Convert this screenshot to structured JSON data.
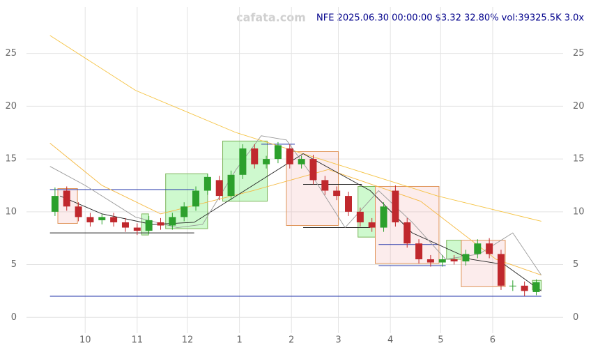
{
  "chart_data": {
    "type": "candlestick",
    "title": "NFE 2025.06.30 00:00:00 $3.32 32.80% vol:39325.5K 3.0x",
    "watermark": "cafata.com",
    "xlim": [
      -5,
      315
    ],
    "xticks": [
      {
        "value": 30,
        "label": "10"
      },
      {
        "value": 61,
        "label": "11"
      },
      {
        "value": 91,
        "label": "12"
      },
      {
        "value": 122,
        "label": "1"
      },
      {
        "value": 153,
        "label": "2"
      },
      {
        "value": 181,
        "label": "3"
      },
      {
        "value": 212,
        "label": "4"
      },
      {
        "value": 242,
        "label": "5"
      },
      {
        "value": 273,
        "label": "6"
      }
    ],
    "ylim": [
      -1.5,
      29.4
    ],
    "yticks": [
      0,
      5,
      10,
      15,
      20,
      25
    ],
    "grid": true,
    "up_color": "#2ca02c",
    "down_color": "#c0282d",
    "x": [
      12,
      19,
      26,
      33,
      40,
      47,
      54,
      61,
      68,
      75,
      82,
      89,
      96,
      103,
      110,
      117,
      124,
      131,
      138,
      145,
      152,
      159,
      166,
      173,
      180,
      187,
      194,
      201,
      208,
      215,
      222,
      229,
      236,
      243,
      250,
      257,
      264,
      271,
      278,
      285,
      292,
      299
    ],
    "open": [
      10,
      12,
      10.5,
      9.5,
      9.2,
      9.5,
      9,
      8.5,
      8.2,
      9,
      8.7,
      9.5,
      10.5,
      12,
      13,
      11.5,
      13.5,
      16,
      14.5,
      15,
      16,
      14.5,
      15,
      13,
      12,
      11.5,
      10,
      9,
      8.5,
      12,
      9,
      7,
      5.5,
      5.2,
      5.5,
      5.3,
      6,
      7,
      6,
      3,
      3,
      2.4
    ],
    "high": [
      12.3,
      12.4,
      10.9,
      9.9,
      9.8,
      9.9,
      9.4,
      8.9,
      9.6,
      9.4,
      9.9,
      10.9,
      12.4,
      13.6,
      13.4,
      13.9,
      16.4,
      16.4,
      15.3,
      16.6,
      16.4,
      15.3,
      15.4,
      13.4,
      12.4,
      11.9,
      10.4,
      9.4,
      10.9,
      12.5,
      9.4,
      7.4,
      5.9,
      5.9,
      5.9,
      6.4,
      7.4,
      7.5,
      6.4,
      3.5,
      3.4,
      3.6
    ],
    "low": [
      9.6,
      10.1,
      9.1,
      8.6,
      8.8,
      8.6,
      8.1,
      7.8,
      7.9,
      8.3,
      8.3,
      9.1,
      10.1,
      11.6,
      11.1,
      11.1,
      13.1,
      14.1,
      14.1,
      14.6,
      14.1,
      14.1,
      12.6,
      11.6,
      11.1,
      9.6,
      8.6,
      8.1,
      8.1,
      8.6,
      6.6,
      5.1,
      4.8,
      4.8,
      5.0,
      4.9,
      5.6,
      5.6,
      2.6,
      2.5,
      2.0,
      2.1
    ],
    "close": [
      11.5,
      10.5,
      9.5,
      9,
      9.5,
      9,
      8.5,
      8.2,
      9.2,
      8.7,
      9.5,
      10.5,
      12,
      13.3,
      11.5,
      13.5,
      16,
      14.5,
      15,
      16.3,
      14.5,
      15,
      13,
      12,
      11.5,
      10,
      9,
      8.5,
      10.5,
      9,
      7,
      5.5,
      5.2,
      5.5,
      5.3,
      6,
      7,
      6,
      3,
      3,
      2.5,
      3.32
    ],
    "series": [
      {
        "color": "#f5c342",
        "x": [
          9,
          60,
          120,
          180,
          240,
          302
        ],
        "values": [
          26.7,
          21.5,
          17.5,
          14.5,
          11.5,
          9.1
        ]
      },
      {
        "color": "#f5b942",
        "x": [
          9,
          40,
          75,
          130,
          175,
          230,
          275,
          302
        ],
        "values": [
          16.5,
          12.5,
          9.8,
          12,
          14,
          11,
          5.5,
          4
        ]
      },
      {
        "color": "#222222",
        "x": [
          15,
          40,
          70,
          95,
          130,
          160,
          200,
          225,
          260,
          280,
          302
        ],
        "values": [
          11.5,
          9.8,
          8.8,
          9,
          12.5,
          15.5,
          12,
          8,
          5.5,
          5,
          2.5
        ]
      },
      {
        "color": "#999999",
        "x": [
          9,
          30,
          60,
          85,
          100,
          120,
          135,
          150,
          165,
          185,
          205,
          225,
          245,
          265,
          285,
          302
        ],
        "values": [
          14.3,
          12.5,
          9.5,
          8.5,
          8.8,
          14,
          17.2,
          16.8,
          13.5,
          8.5,
          12,
          9,
          5.5,
          6,
          8,
          4
        ]
      }
    ],
    "boxes": [
      {
        "x0": 13.7,
        "x1": 25.4,
        "y0": 8.9,
        "y1": 12.2,
        "color": "red"
      },
      {
        "x0": 63.7,
        "x1": 67.8,
        "y0": 7.8,
        "y1": 9.8,
        "color": "green"
      },
      {
        "x0": 78,
        "x1": 103,
        "y0": 8.4,
        "y1": 13.6,
        "color": "green"
      },
      {
        "x0": 112,
        "x1": 138.6,
        "y0": 11,
        "y1": 16.7,
        "color": "green"
      },
      {
        "x0": 150,
        "x1": 181,
        "y0": 8.7,
        "y1": 15.7,
        "color": "red"
      },
      {
        "x0": 192.7,
        "x1": 203,
        "y0": 7.6,
        "y1": 12.4,
        "color": "green"
      },
      {
        "x0": 203,
        "x1": 241,
        "y0": 5.1,
        "y1": 12.4,
        "color": "red"
      },
      {
        "x0": 245.5,
        "x1": 254.3,
        "y0": 5.5,
        "y1": 7.3,
        "color": "green"
      },
      {
        "x0": 254.3,
        "x1": 280.5,
        "y0": 2.9,
        "y1": 7.3,
        "color": "red"
      },
      {
        "x0": 296.7,
        "x1": 302,
        "y0": 2.6,
        "y1": 3.5,
        "color": "green"
      }
    ],
    "levels": [
      {
        "x0": 9,
        "x1": 302,
        "y": 2.0,
        "color": "#2233aa"
      },
      {
        "x0": 9,
        "x1": 95,
        "y": 8.0,
        "color": "#222222"
      },
      {
        "x0": 9,
        "x1": 95,
        "y": 12.1,
        "color": "#2233aa"
      },
      {
        "x0": 135,
        "x1": 155,
        "y": 16.4,
        "color": "#2233aa"
      },
      {
        "x0": 160,
        "x1": 200,
        "y": 8.5,
        "color": "#222222"
      },
      {
        "x0": 160,
        "x1": 195,
        "y": 12.6,
        "color": "#222222"
      },
      {
        "x0": 205,
        "x1": 245,
        "y": 4.9,
        "color": "#2233aa"
      },
      {
        "x0": 205,
        "x1": 240,
        "y": 6.9,
        "color": "#2233aa"
      }
    ]
  }
}
